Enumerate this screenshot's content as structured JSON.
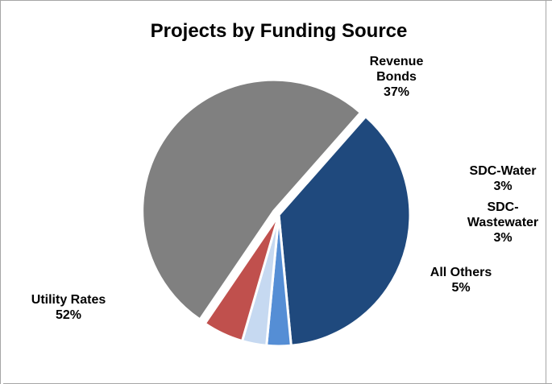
{
  "chart_data": {
    "type": "pie",
    "title": "Projects by Funding Source",
    "slices": [
      {
        "name": "Revenue Bonds",
        "label_lines": [
          "Revenue",
          "Bonds"
        ],
        "value": 37,
        "pct_label": "37%",
        "color": "#1F497D",
        "exploded": false
      },
      {
        "name": "SDC-Water",
        "label_lines": [
          "SDC-Water"
        ],
        "value": 3,
        "pct_label": "3%",
        "color": "#558ED5",
        "exploded": false
      },
      {
        "name": "SDC-Wastewater",
        "label_lines": [
          "SDC-",
          "Wastewater"
        ],
        "value": 3,
        "pct_label": "3%",
        "color": "#C6D9F1",
        "exploded": false
      },
      {
        "name": "All Others",
        "label_lines": [
          "All Others"
        ],
        "value": 5,
        "pct_label": "5%",
        "color": "#C0504D",
        "exploded": false
      },
      {
        "name": "Utility Rates",
        "label_lines": [
          "Utility Rates"
        ],
        "value": 52,
        "pct_label": "52%",
        "color": "#808080",
        "exploded": true
      }
    ],
    "legend": "none",
    "data_labels": "outside"
  }
}
